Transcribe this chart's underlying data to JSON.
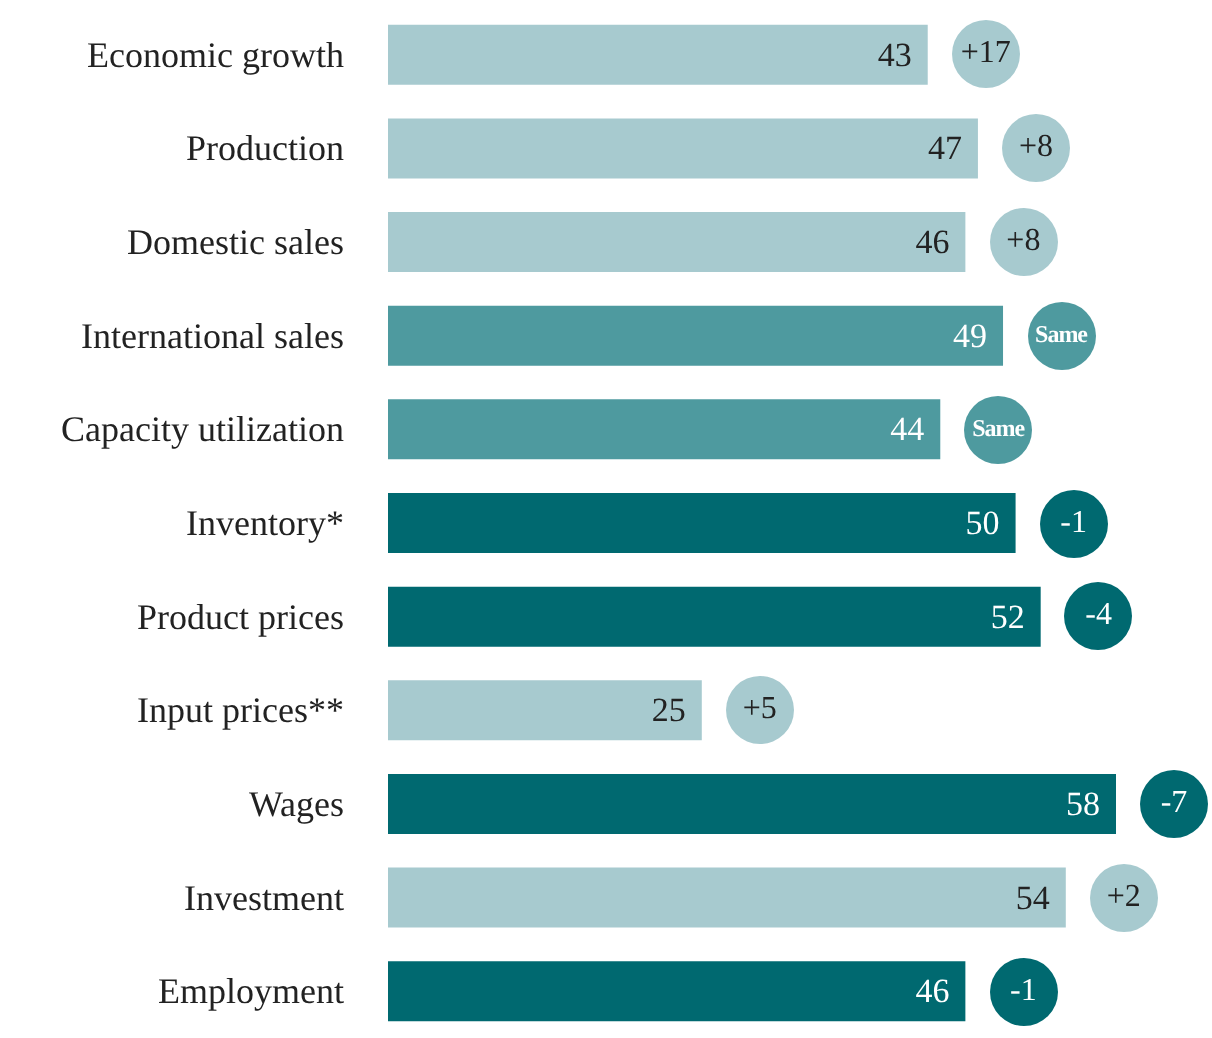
{
  "chart_data": {
    "type": "bar",
    "orientation": "horizontal",
    "categories": [
      "Economic growth",
      "Production",
      "Domestic sales",
      "International sales",
      "Capacity utilization",
      "Inventory*",
      "Product prices",
      "Input prices**",
      "Wages",
      "Investment",
      "Employment"
    ],
    "values": [
      43,
      47,
      46,
      49,
      44,
      50,
      52,
      25,
      58,
      54,
      46
    ],
    "colors": [
      "#a7cacf",
      "#a7cacf",
      "#a7cacf",
      "#4e9a9f",
      "#4e9a9f",
      "#006970",
      "#006970",
      "#a7cacf",
      "#006970",
      "#a7cacf",
      "#006970"
    ],
    "tick_labels": "y",
    "grid": false,
    "data_labels": true,
    "annotations": [
      {
        "text": "+17",
        "x": 43,
        "y": "Economic growth"
      },
      {
        "text": "+8",
        "x": 47,
        "y": "Production"
      },
      {
        "text": "+8",
        "x": 46,
        "y": "Domestic sales"
      },
      {
        "text": "Same",
        "x": 49,
        "y": "International sales"
      },
      {
        "text": "Same",
        "x": 44,
        "y": "Capacity utilization"
      },
      {
        "text": "-1",
        "x": 50,
        "y": "Inventory*"
      },
      {
        "text": "-4",
        "x": 52,
        "y": "Product prices"
      },
      {
        "text": "+5",
        "x": 25,
        "y": "Input prices**"
      },
      {
        "text": "-7",
        "x": 58,
        "y": "Wages"
      },
      {
        "text": "+2",
        "x": 54,
        "y": "Investment"
      },
      {
        "text": "-1",
        "x": 46,
        "y": "Employment"
      }
    ]
  }
}
